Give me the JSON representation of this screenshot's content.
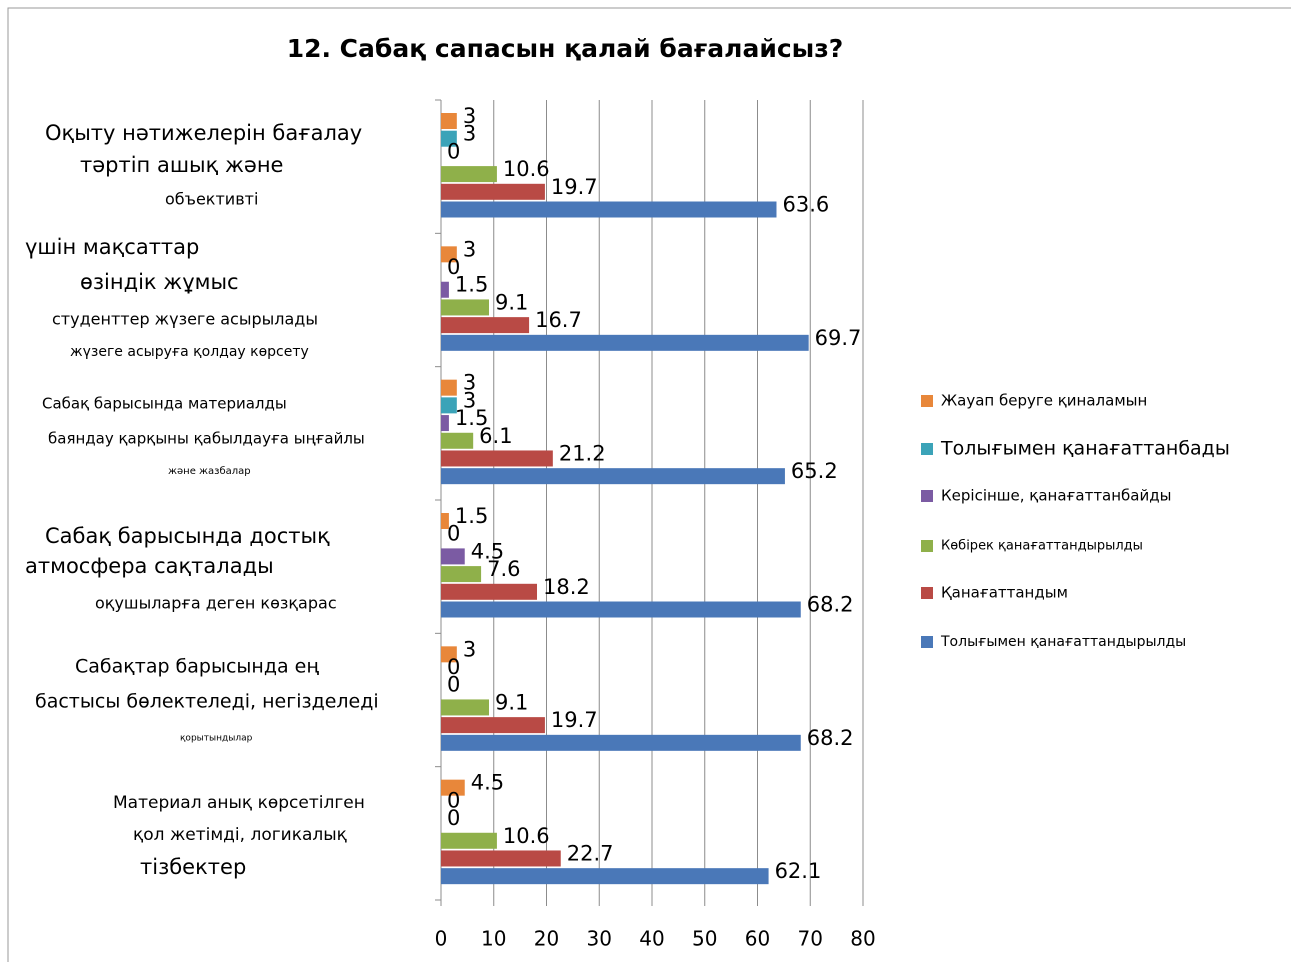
{
  "chart_data": {
    "type": "hbar",
    "title": "12. Сабақ сапасын қалай бағалайсыз?",
    "categories": [
      [
        "Оқыту нәтижелерін бағалау",
        "тәртіп ашық және",
        "объективті"
      ],
      [
        "үшін мақсаттар",
        "өзіндік жұмыс",
        "студенттер жүзеге асырылады",
        "жүзеге асыруға қолдау көрсету"
      ],
      [
        "Сабақ барысында материалды",
        "баяндау қарқыны қабылдауға ыңғайлы",
        "және жазбалар"
      ],
      [
        "Сабақ барысында достық",
        "атмосфера сақталады",
        "оқушыларға деген көзқарас"
      ],
      [
        "Сабақтар барысында ең",
        "бастысы бөлектеледі, негізделеді",
        "қорытындылар"
      ],
      [
        "Материал анық көрсетілген",
        "қол жетімді, логикалық",
        "тізбектер"
      ]
    ],
    "series": [
      {
        "name": "Жауап беруге қиналамын",
        "color": "#e8873a",
        "values": [
          3,
          3,
          3,
          1.5,
          3,
          4.5
        ]
      },
      {
        "name": "Толығымен қанағаттанбады",
        "color": "#3ba3b8",
        "values": [
          3,
          0,
          3,
          0,
          0,
          0
        ]
      },
      {
        "name": "Керісінше, қанағаттанбайды",
        "color": "#7b5ba3",
        "values": [
          0,
          1.5,
          1.5,
          4.5,
          0,
          0
        ]
      },
      {
        "name": "Көбірек қанағаттандырылды",
        "color": "#8fb04a",
        "values": [
          10.6,
          9.1,
          6.1,
          7.6,
          9.1,
          10.6
        ]
      },
      {
        "name": "Қанағаттандым",
        "color": "#b94a45",
        "values": [
          19.7,
          16.7,
          21.2,
          18.2,
          19.7,
          22.7
        ]
      },
      {
        "name": "Толығымен қанағаттандырылды",
        "color": "#4a78b8",
        "values": [
          63.6,
          69.7,
          65.2,
          68.2,
          68.2,
          62.1
        ]
      }
    ],
    "xlim": [
      0,
      80
    ],
    "xticks": [
      0,
      10,
      20,
      30,
      40,
      50,
      60,
      70,
      80
    ],
    "grid": true,
    "legend": "right"
  }
}
